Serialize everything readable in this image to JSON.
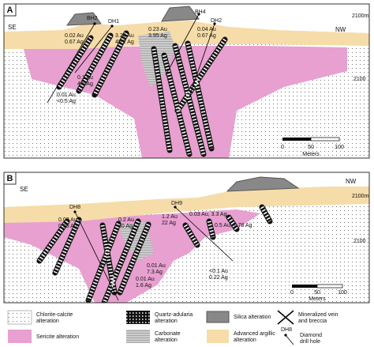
{
  "panels": [
    {
      "label": "A",
      "left": "SE",
      "right": "NW",
      "elev_top": "2100m",
      "elev_mid": "2100",
      "holes": [
        "BH2",
        "DH1",
        "BH4",
        "DH2"
      ],
      "assays": [
        [
          "0.02 Au",
          "0.67 Ag"
        ],
        [
          "3.24 Au",
          "49.2 Ag"
        ],
        [
          "0.23 Au",
          "3.95 Ag"
        ],
        [
          "0.04 Au",
          "0.67 Ag"
        ],
        [
          "0.1 Au",
          "4.5 Ag"
        ],
        [
          "0.01 Au",
          "<0.5 Ag"
        ]
      ],
      "scale": {
        "ticks": [
          "0",
          "50",
          "100"
        ],
        "unit": "Meters"
      }
    },
    {
      "label": "B",
      "left": "SE",
      "right": "NW",
      "elev_top": "2100m",
      "elev_mid": "2100",
      "holes": [
        "DH8",
        "DH9"
      ],
      "assays": [
        [
          "0.03 Au",
          "0.98 Ag"
        ],
        [
          "0.2 Au",
          "30 Ag"
        ],
        [
          "1.2 Au",
          "22 Ag"
        ],
        [
          "0.03 Au, 3.3 Ag"
        ],
        [
          "0.5 Au, 1.78 Ag"
        ],
        [
          "<0.1 Au",
          "0.22 Ag"
        ],
        [
          "0.01 Au",
          "7.3 Ag"
        ],
        [
          "0.01 Au",
          "1.6 Ag"
        ]
      ],
      "scale": {
        "ticks": [
          "0",
          "50",
          "100"
        ],
        "unit": "Meters"
      }
    }
  ],
  "legend": [
    {
      "label": [
        "Chlorite-calcite",
        "alteration"
      ]
    },
    {
      "label": [
        "Quartz-adularia",
        "alteration"
      ]
    },
    {
      "label": [
        "Silica alteration"
      ]
    },
    {
      "label": [
        "Mineralized vein",
        "and breccia"
      ]
    },
    {
      "label": [
        "Sericite alteration"
      ]
    },
    {
      "label": [
        "Carbonate",
        "alteration"
      ]
    },
    {
      "label": [
        "Advanced argillic",
        "alteration"
      ]
    },
    {
      "label": [
        "Diamond",
        "drill hole"
      ],
      "icon": "DH8"
    }
  ]
}
